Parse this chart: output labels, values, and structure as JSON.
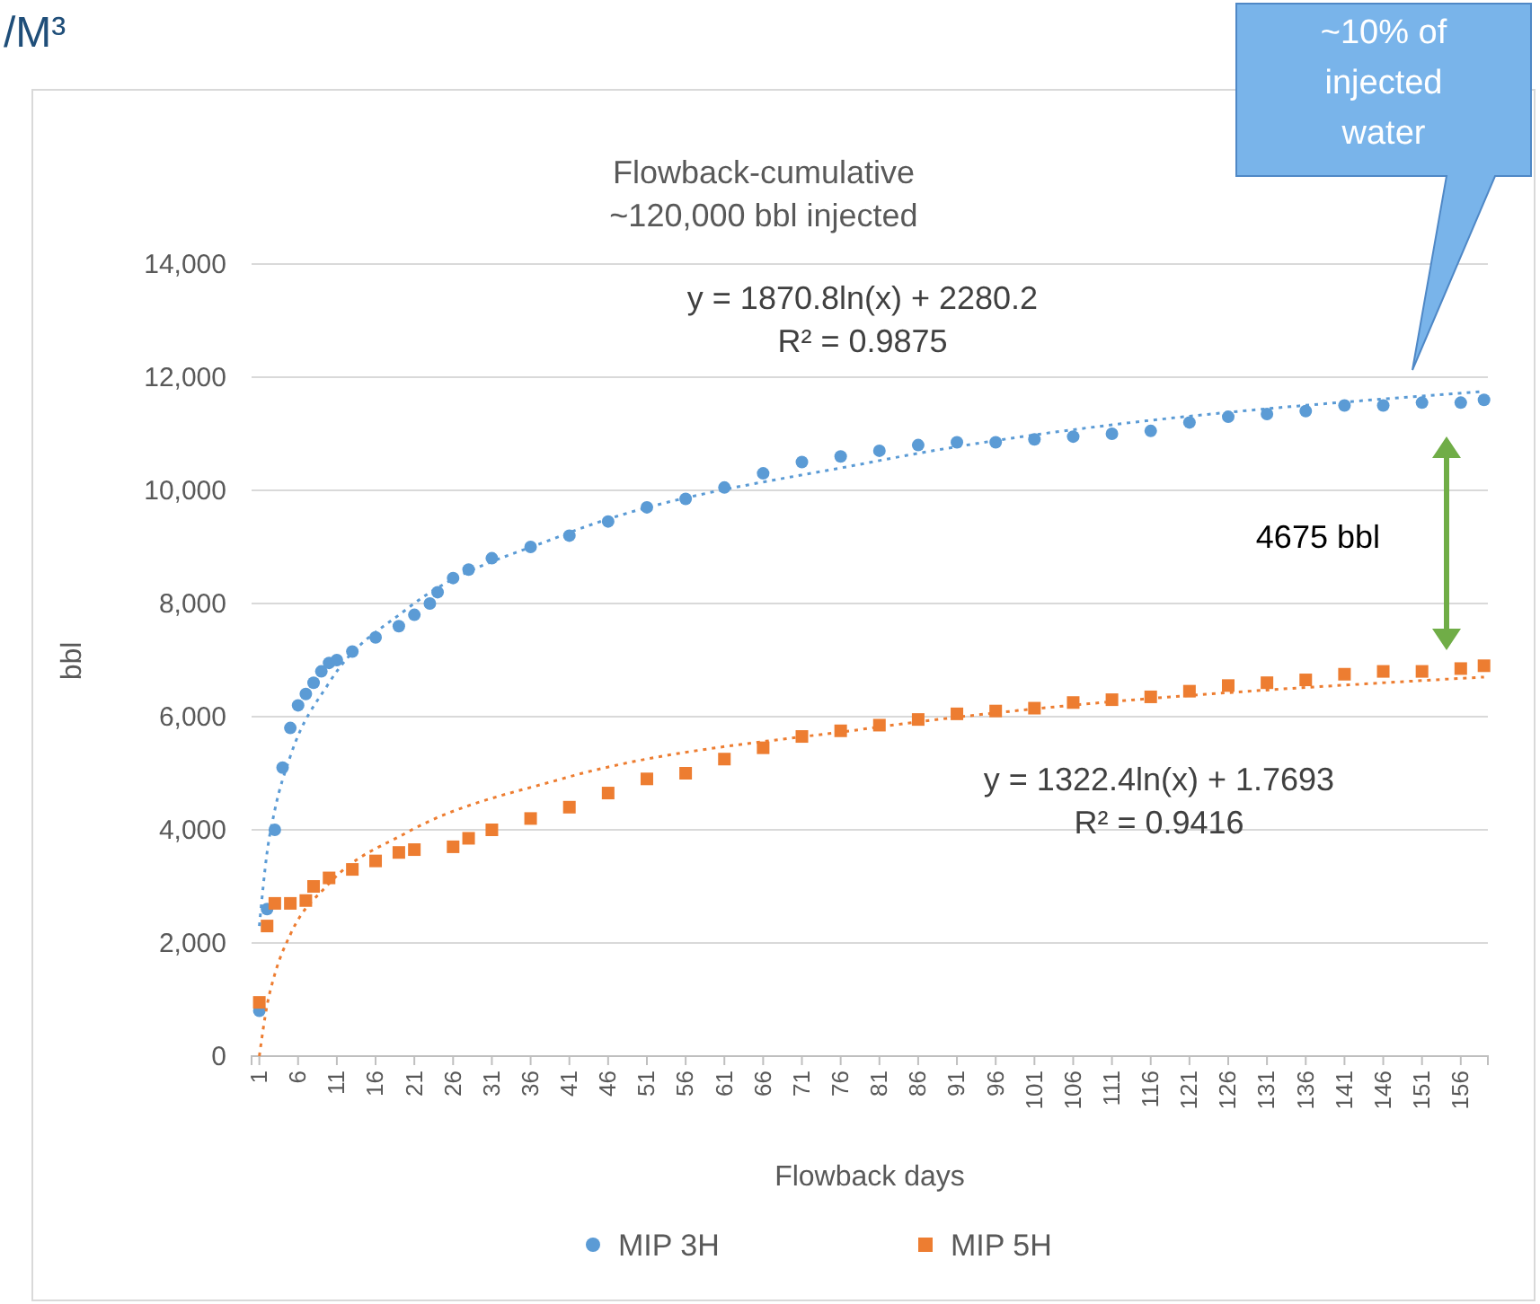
{
  "chart_data": {
    "type": "scatter",
    "title": "Flowback-cumulative",
    "subtitle": "~120,000 bbl injected",
    "xlabel": "Flowback days",
    "ylabel": "bbl",
    "xlim": [
      0,
      159.5
    ],
    "xticks": [
      1,
      6,
      11,
      16,
      21,
      26,
      31,
      36,
      41,
      46,
      51,
      56,
      61,
      66,
      71,
      76,
      81,
      86,
      91,
      96,
      101,
      106,
      111,
      116,
      121,
      126,
      131,
      136,
      141,
      146,
      151,
      156
    ],
    "ylim": [
      0,
      14000
    ],
    "yticks": [
      0,
      {
        "value": 2000,
        "label": "2,000"
      },
      {
        "value": 4000,
        "label": "4,000"
      },
      {
        "value": 6000,
        "label": "6,000"
      },
      {
        "value": 8000,
        "label": "8,000"
      },
      {
        "value": 10000,
        "label": "10,000"
      },
      {
        "value": 12000,
        "label": "12,000"
      },
      {
        "value": 14000,
        "label": "14,000"
      }
    ],
    "grid": "y",
    "legend": "bottom",
    "series": [
      {
        "name": "MIP 3H",
        "color": "#5b9bd5",
        "marker": "circle",
        "x": [
          1,
          2,
          3,
          4,
          5,
          6,
          7,
          8,
          9,
          10,
          11,
          13,
          16,
          19,
          21,
          23,
          24,
          26,
          28,
          31,
          36,
          41,
          46,
          51,
          56,
          61,
          66,
          71,
          76,
          81,
          86,
          91,
          96,
          101,
          106,
          111,
          116,
          121,
          126,
          131,
          136,
          141,
          146,
          151,
          156,
          159
        ],
        "values": [
          800,
          2600,
          4000,
          5100,
          5800,
          6200,
          6400,
          6600,
          6800,
          6950,
          7000,
          7150,
          7400,
          7600,
          7800,
          8000,
          8200,
          8450,
          8600,
          8800,
          9000,
          9200,
          9450,
          9700,
          9850,
          10050,
          10300,
          10500,
          10600,
          10700,
          10800,
          10850,
          10850,
          10900,
          10950,
          11000,
          11050,
          11200,
          11300,
          11350,
          11400,
          11500,
          11500,
          11550,
          11550,
          11600
        ]
      },
      {
        "name": "MIP 5H",
        "color": "#ed7d31",
        "marker": "square",
        "x": [
          1,
          2,
          3,
          5,
          7,
          8,
          10,
          13,
          16,
          19,
          21,
          26,
          28,
          31,
          36,
          41,
          46,
          51,
          56,
          61,
          66,
          71,
          76,
          81,
          86,
          91,
          96,
          101,
          106,
          111,
          116,
          121,
          126,
          131,
          136,
          141,
          146,
          151,
          156,
          159
        ],
        "values": [
          950,
          2300,
          2700,
          2700,
          2750,
          3000,
          3150,
          3300,
          3450,
          3600,
          3650,
          3700,
          3850,
          4000,
          4200,
          4400,
          4650,
          4900,
          5000,
          5250,
          5450,
          5650,
          5750,
          5850,
          5950,
          6050,
          6100,
          6150,
          6250,
          6300,
          6350,
          6450,
          6550,
          6600,
          6650,
          6750,
          6800,
          6800,
          6850,
          6900
        ]
      },
      {
        "type": "line",
        "color": "#5b9bd5",
        "line_style": "dotted",
        "x": [
          1,
          2,
          3,
          5,
          10,
          20,
          40,
          80,
          159
        ],
        "values": [
          2300,
          3600,
          4350,
          5300,
          6600,
          7900,
          9200,
          10500,
          11750
        ]
      },
      {
        "type": "line",
        "color": "#ed7d31",
        "line_style": "dotted",
        "x": [
          1,
          2,
          3,
          5,
          10,
          20,
          40,
          80,
          159
        ],
        "values": [
          0,
          900,
          1450,
          2150,
          3050,
          3950,
          4900,
          5800,
          6700
        ]
      }
    ],
    "annotations": [
      "y = 1870.8ln(x) + 2280.2\nR² = 0.9875",
      "y = 1322.4ln(x) + 1.7693\nR² = 0.9416",
      "4675 bbl",
      "~10% of\ninjected\nwater",
      "/M³"
    ]
  }
}
